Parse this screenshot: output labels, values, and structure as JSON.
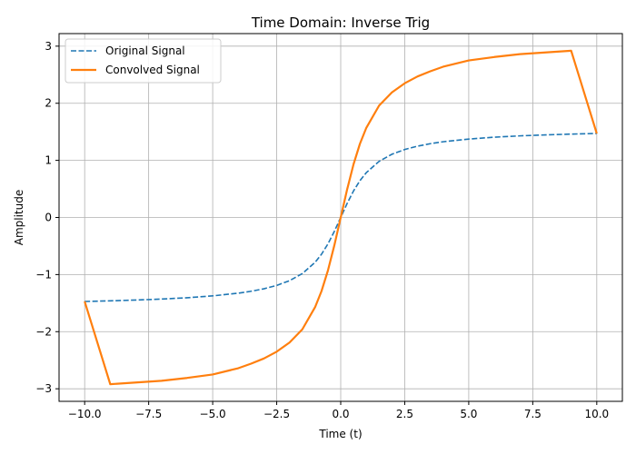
{
  "chart_data": {
    "type": "line",
    "title": "Time Domain: Inverse Trig",
    "xlabel": "Time (t)",
    "ylabel": "Amplitude",
    "xlim": [
      -11.0,
      11.0
    ],
    "ylim": [
      -3.22,
      3.22
    ],
    "xticks": [
      -10.0,
      -7.5,
      -5.0,
      -2.5,
      0.0,
      2.5,
      5.0,
      7.5,
      10.0
    ],
    "xtick_labels": [
      "−10.0",
      "−7.5",
      "−5.0",
      "−2.5",
      "0.0",
      "2.5",
      "5.0",
      "7.5",
      "10.0"
    ],
    "yticks": [
      -3,
      -2,
      -1,
      0,
      1,
      2,
      3
    ],
    "ytick_labels": [
      "−3",
      "−2",
      "−1",
      "0",
      "1",
      "2",
      "3"
    ],
    "grid": true,
    "legend_position": "upper left",
    "series": [
      {
        "name": "Original Signal",
        "color": "#1f77b4",
        "style": "dashed",
        "x": [
          -10,
          -9,
          -8,
          -7,
          -6,
          -5,
          -4,
          -3.5,
          -3,
          -2.5,
          -2,
          -1.5,
          -1,
          -0.75,
          -0.5,
          -0.25,
          0,
          0.25,
          0.5,
          0.75,
          1,
          1.5,
          2,
          2.5,
          3,
          3.5,
          4,
          5,
          6,
          7,
          8,
          9,
          10
        ],
        "y": [
          -1.471,
          -1.46,
          -1.446,
          -1.429,
          -1.406,
          -1.373,
          -1.326,
          -1.292,
          -1.249,
          -1.19,
          -1.107,
          -0.983,
          -0.785,
          -0.644,
          -0.464,
          -0.245,
          0.0,
          0.245,
          0.464,
          0.644,
          0.785,
          0.983,
          1.107,
          1.19,
          1.249,
          1.292,
          1.326,
          1.373,
          1.406,
          1.429,
          1.446,
          1.46,
          1.471
        ]
      },
      {
        "name": "Convolved Signal",
        "color": "#ff7f0e",
        "style": "solid",
        "x": [
          -10,
          -9,
          -8,
          -7,
          -6,
          -5,
          -4,
          -3.5,
          -3,
          -2.5,
          -2,
          -1.5,
          -1,
          -0.75,
          -0.5,
          -0.25,
          0,
          0.25,
          0.5,
          0.75,
          1,
          1.5,
          2,
          2.5,
          3,
          3.5,
          4,
          5,
          6,
          7,
          8,
          9,
          10
        ],
        "y": [
          -1.47,
          -2.92,
          -2.89,
          -2.86,
          -2.81,
          -2.75,
          -2.64,
          -2.56,
          -2.47,
          -2.35,
          -2.19,
          -1.96,
          -1.57,
          -1.29,
          -0.93,
          -0.49,
          0.0,
          0.49,
          0.93,
          1.29,
          1.57,
          1.96,
          2.19,
          2.35,
          2.47,
          2.56,
          2.64,
          2.75,
          2.81,
          2.86,
          2.89,
          2.92,
          1.47
        ]
      }
    ]
  }
}
